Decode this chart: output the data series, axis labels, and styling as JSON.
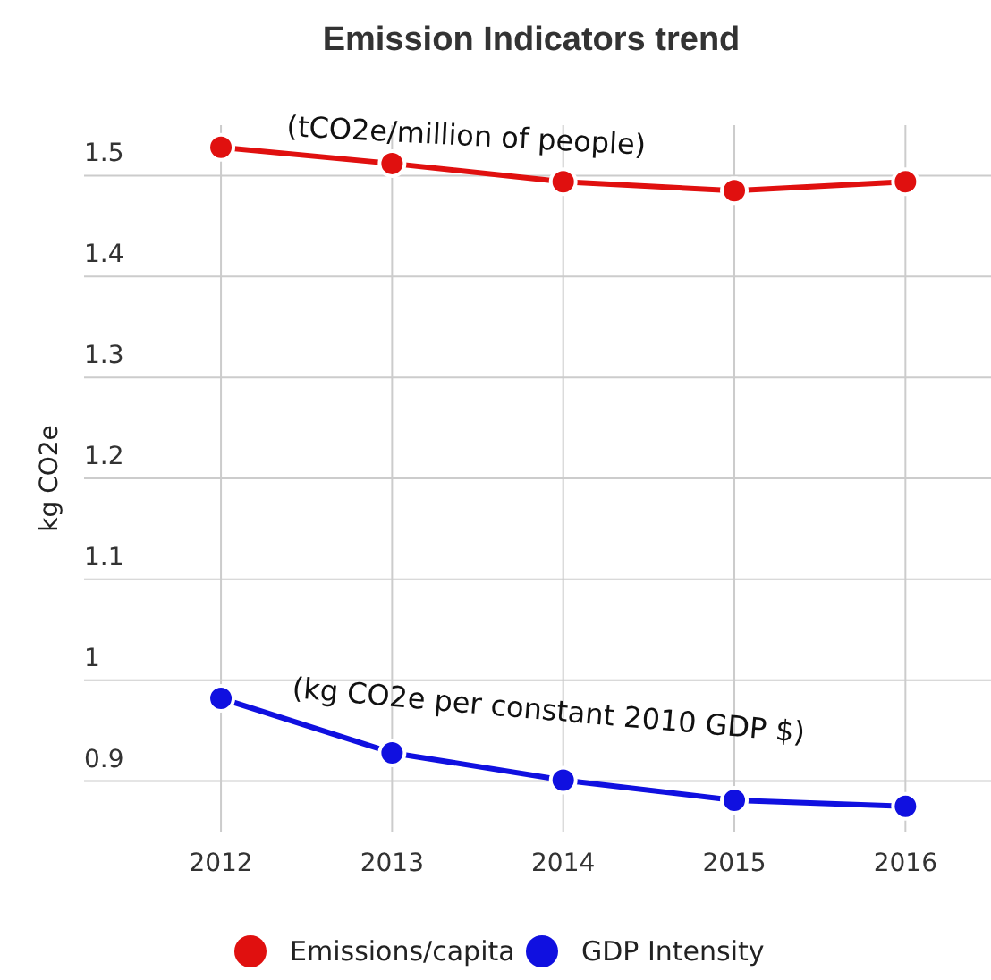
{
  "chart_data": {
    "type": "line",
    "title": "Emission Indicators trend",
    "ylabel": "kg CO2e",
    "x": [
      2012,
      2013,
      2014,
      2015,
      2016
    ],
    "series": [
      {
        "name": "Emissions/capita",
        "color": "#e0100f",
        "values": [
          1.528,
          1.512,
          1.494,
          1.485,
          1.494
        ]
      },
      {
        "name": "GDP Intensity",
        "color": "#1010e0",
        "values": [
          0.982,
          0.928,
          0.901,
          0.881,
          0.875
        ]
      }
    ],
    "xlim": [
      2011.2,
      2016.5
    ],
    "xticks": [
      2012,
      2013,
      2014,
      2015,
      2016
    ],
    "ylim": [
      0.85,
      1.55
    ],
    "yticks": [
      0.9,
      {
        "value": 1,
        "label": "1"
      },
      1.1,
      1.2,
      1.3,
      1.4,
      1.5
    ],
    "annotations": [
      "(tCO2e/million of people)",
      "(kg CO2e per constant 2010 GDP $)"
    ],
    "grid": true,
    "legend": "bottom",
    "marker": "circle",
    "line_style": "solid"
  }
}
